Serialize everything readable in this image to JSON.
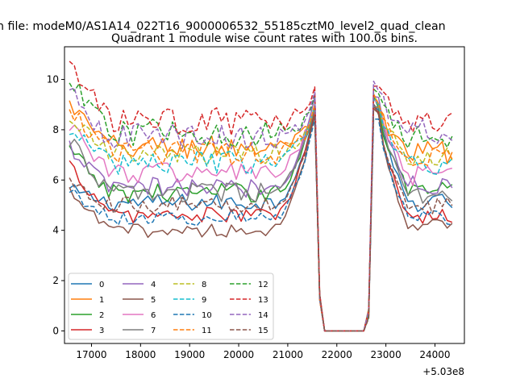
{
  "figure": {
    "suptitle": "n file: modeM0/AS1A14_022T16_9000006532_55185cztM0_level2_quad_clean"
  },
  "chart_data": {
    "type": "line",
    "title": "Quadrant 1 module wise count rates with 100.0s bins.",
    "xlabel": "",
    "ylabel": "",
    "x_offset_label": "+5.03e8",
    "xlim": [
      16450,
      24600
    ],
    "ylim": [
      -0.5,
      11.3
    ],
    "xticks": [
      17000,
      18000,
      19000,
      20000,
      21000,
      22000,
      23000,
      24000
    ],
    "yticks": [
      0,
      2,
      4,
      6,
      8,
      10
    ],
    "grid": false,
    "legend": {
      "placement": "lower-left",
      "columns": 4
    },
    "time": {
      "x_start": 16550,
      "x_step": 100,
      "n_points": 79,
      "gap_start_index": 51,
      "gap_end_index": 61
    },
    "series": [
      {
        "name": "0",
        "color": "#1f77b4",
        "style": "solid",
        "level": 5.1,
        "spike": 8.8,
        "post": 5.1,
        "start": 5.6
      },
      {
        "name": "1",
        "color": "#ff7f0e",
        "style": "solid",
        "level": 7.3,
        "spike": 8.9,
        "post": 7.1,
        "start": 9.0
      },
      {
        "name": "2",
        "color": "#2ca02c",
        "style": "solid",
        "level": 5.5,
        "spike": 8.9,
        "post": 5.6,
        "start": 7.2
      },
      {
        "name": "3",
        "color": "#d62728",
        "style": "solid",
        "level": 4.6,
        "spike": 8.7,
        "post": 4.6,
        "start": 6.6
      },
      {
        "name": "4",
        "color": "#9467bd",
        "style": "solid",
        "level": 5.7,
        "spike": 9.3,
        "post": 5.8,
        "start": 7.3
      },
      {
        "name": "5",
        "color": "#8c564b",
        "style": "solid",
        "level": 4.0,
        "spike": 8.6,
        "post": 4.2,
        "start": 5.5
      },
      {
        "name": "6",
        "color": "#e377c2",
        "style": "solid",
        "level": 6.3,
        "spike": 9.0,
        "post": 6.1,
        "start": 8.3
      },
      {
        "name": "7",
        "color": "#7f7f7f",
        "style": "solid",
        "level": 5.5,
        "spike": 8.9,
        "post": 5.4,
        "start": 7.6
      },
      {
        "name": "8",
        "color": "#bcbd22",
        "style": "dashed",
        "level": 7.0,
        "spike": 9.0,
        "post": 6.8,
        "start": 8.6
      },
      {
        "name": "9",
        "color": "#17becf",
        "style": "dashed",
        "level": 6.7,
        "spike": 9.0,
        "post": 6.6,
        "start": 8.0
      },
      {
        "name": "10",
        "color": "#1f77b4",
        "style": "dashed",
        "level": 4.5,
        "spike": 8.4,
        "post": 4.5,
        "start": 5.6
      },
      {
        "name": "11",
        "color": "#ff7f0e",
        "style": "dashed",
        "level": 7.1,
        "spike": 9.0,
        "post": 7.0,
        "start": 8.9
      },
      {
        "name": "12",
        "color": "#2ca02c",
        "style": "dashed",
        "level": 7.9,
        "spike": 9.4,
        "post": 7.6,
        "start": 9.9
      },
      {
        "name": "13",
        "color": "#d62728",
        "style": "dashed",
        "level": 8.3,
        "spike": 9.7,
        "post": 8.2,
        "start": 10.7
      },
      {
        "name": "14",
        "color": "#9467bd",
        "style": "dashed",
        "level": 7.7,
        "spike": 9.5,
        "post": 7.9,
        "start": 9.5
      },
      {
        "name": "15",
        "color": "#8c564b",
        "style": "dashed",
        "level": 5.0,
        "spike": 8.6,
        "post": 5.0,
        "start": 6.0
      }
    ]
  }
}
